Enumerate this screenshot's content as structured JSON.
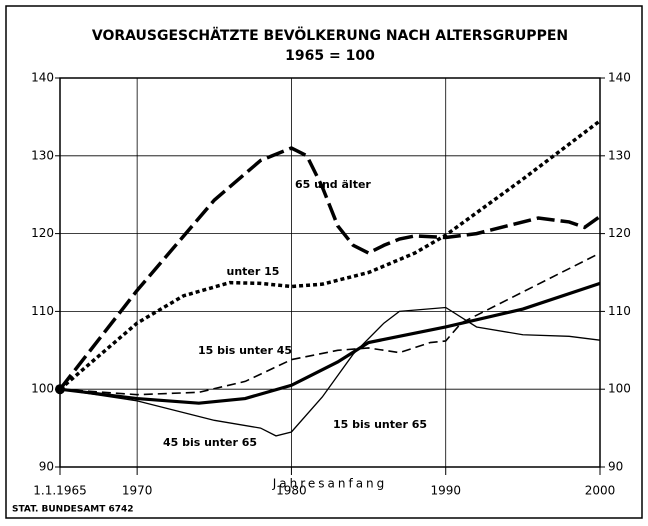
{
  "chart_data": {
    "type": "line",
    "title": "VORAUSGESCHÄTZTE BEVÖLKERUNG NACH ALTERSGRUPPEN",
    "subtitle": "1965 = 100",
    "x_label": "Jahresanfang",
    "source": "STAT. BUNDESAMT 6742",
    "xlim": [
      1965,
      2000
    ],
    "xticks": [
      {
        "value": 1965,
        "label": "1.1.1965"
      },
      1970,
      1980,
      1990,
      2000
    ],
    "ylim": [
      90,
      140
    ],
    "yticks": [
      90,
      100,
      110,
      120,
      130,
      140
    ],
    "y2lim": [
      90,
      140
    ],
    "y2ticks": [
      90,
      100,
      110,
      120,
      130,
      140
    ],
    "grid": true,
    "series": [
      {
        "name": "65 und älter",
        "color": "#000000",
        "x": [
          1965,
          1970,
          1975,
          1978,
          1980,
          1981,
          1982,
          1983,
          1984,
          1985,
          1986,
          1987,
          1988,
          1990,
          1992,
          1994,
          1996,
          1998,
          1999,
          2000
        ],
        "values": [
          100,
          112.7,
          124.3,
          129.4,
          131,
          130,
          126,
          121,
          118.5,
          117.5,
          118.5,
          119.3,
          119.7,
          119.5,
          120,
          121,
          122,
          121.5,
          120.8,
          122.2
        ]
      },
      {
        "name": "unter 15",
        "color": "#000000",
        "x": [
          1965,
          1970,
          1973,
          1976,
          1978,
          1980,
          1982,
          1985,
          1988,
          1990,
          1995,
          2000
        ],
        "values": [
          100,
          108.5,
          112,
          113.7,
          113.6,
          113.2,
          113.5,
          115,
          117.5,
          119.8,
          127,
          134.5
        ]
      },
      {
        "name": "15 bis unter 45",
        "color": "#000000",
        "x": [
          1965,
          1970,
          1974,
          1977,
          1980,
          1983,
          1985,
          1987,
          1989,
          1990,
          1991,
          1995,
          2000
        ],
        "values": [
          100,
          99.3,
          99.6,
          101,
          103.8,
          105,
          105.3,
          104.7,
          106,
          106.2,
          108.5,
          112.5,
          117.5
        ]
      },
      {
        "name": "15 bis unter 65",
        "color": "#000000",
        "x": [
          1965,
          1970,
          1974,
          1977,
          1980,
          1983,
          1985,
          1990,
          1995,
          2000
        ],
        "values": [
          100,
          98.8,
          98.2,
          98.8,
          100.5,
          103.5,
          106,
          108,
          110.3,
          113.6
        ]
      },
      {
        "name": "45 bis unter 65",
        "color": "#000000",
        "x": [
          1965,
          1970,
          1975,
          1978,
          1979,
          1980,
          1982,
          1984,
          1986,
          1987,
          1990,
          1992,
          1995,
          1998,
          2000
        ],
        "values": [
          100,
          98.5,
          96,
          95,
          94,
          94.5,
          99,
          104.5,
          108.5,
          110,
          110.5,
          108,
          107,
          106.8,
          106.3
        ]
      }
    ]
  }
}
